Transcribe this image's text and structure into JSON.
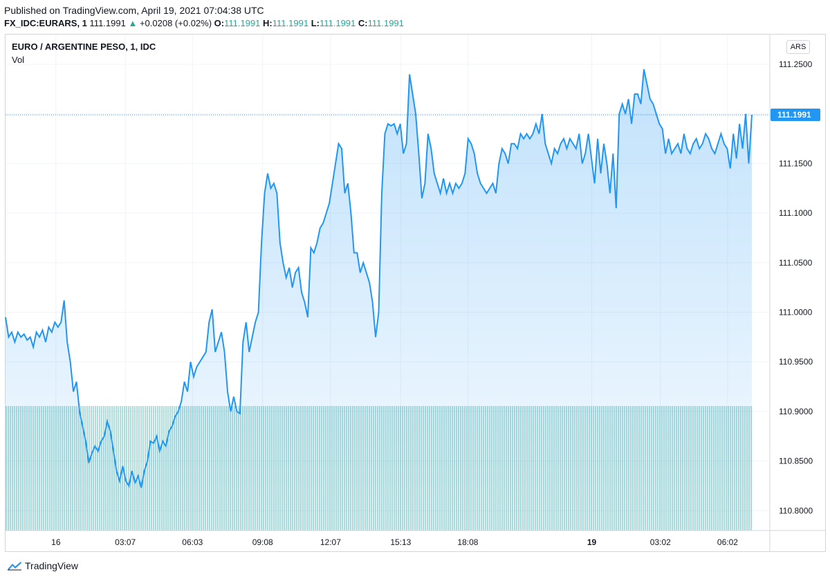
{
  "header": {
    "published": "Published on TradingView.com, April 19, 2021 07:04:38 UTC",
    "symbol": "FX_IDC:EURARS, 1",
    "last": "111.1991",
    "change_arrow": "▲",
    "change": "+0.0208 (+0.02%)",
    "o_label": "O:",
    "o_value": "111.1991",
    "h_label": "H:",
    "h_value": "111.1991",
    "l_label": "L:",
    "l_value": "111.1991",
    "c_label": "C:",
    "c_value": "111.1991"
  },
  "chart_title": "EURO / ARGENTINE PESO, 1, IDC",
  "volume_label": "Vol",
  "currency_badge": "ARS",
  "footer": {
    "brand": "TradingView"
  },
  "colors": {
    "line": "#2196f3",
    "fill": "#2196f3",
    "volume": "#26a69a",
    "last_price": "#2196f3",
    "up": "#26a69a"
  },
  "chart_data": {
    "type": "area",
    "title": "EURO / ARGENTINE PESO, 1, IDC",
    "xlabel": "",
    "ylabel": "",
    "ylim": [
      110.78,
      111.28
    ],
    "y_ticks": [
      "111.2500",
      "111.2000",
      "111.1500",
      "111.1000",
      "111.0500",
      "111.0000",
      "110.9500",
      "110.9000",
      "110.8500",
      "110.8000"
    ],
    "y_tick_values": [
      111.25,
      111.2,
      111.15,
      111.1,
      111.05,
      111.0,
      110.95,
      110.9,
      110.85,
      110.8
    ],
    "x_ticks": [
      {
        "label": "16",
        "bold": false,
        "pos": 0.0675
      },
      {
        "label": "03:07",
        "bold": false,
        "pos": 0.1605
      },
      {
        "label": "06:03",
        "bold": false,
        "pos": 0.2505
      },
      {
        "label": "09:08",
        "bold": false,
        "pos": 0.3445
      },
      {
        "label": "12:07",
        "bold": false,
        "pos": 0.4355
      },
      {
        "label": "15:13",
        "bold": false,
        "pos": 0.5295
      },
      {
        "label": "18:08",
        "bold": false,
        "pos": 0.6195
      },
      {
        "label": "19",
        "bold": true,
        "pos": 0.7855
      },
      {
        "label": "03:02",
        "bold": false,
        "pos": 0.8775
      },
      {
        "label": "06:02",
        "bold": false,
        "pos": 0.9675
      }
    ],
    "last_price": 111.1991,
    "last_price_label": "111.1991",
    "series": [
      {
        "values": [
          110.995,
          110.975,
          110.98,
          110.97,
          110.98,
          110.975,
          110.978,
          110.972,
          110.975,
          110.965,
          110.98,
          110.975,
          110.982,
          110.97,
          110.985,
          110.98,
          110.99,
          110.985,
          110.99,
          111.012,
          110.97,
          110.95,
          110.92,
          110.93,
          110.9,
          110.885,
          110.87,
          110.848,
          110.858,
          110.865,
          110.86,
          110.87,
          110.875,
          110.89,
          110.88,
          110.86,
          110.84,
          110.83,
          110.845,
          110.83,
          110.825,
          110.84,
          110.828,
          110.835,
          110.823,
          110.84,
          110.85,
          110.87,
          110.868,
          110.875,
          110.86,
          110.87,
          110.865,
          110.88,
          110.885,
          110.895,
          110.9,
          110.91,
          110.93,
          110.92,
          110.95,
          110.935,
          110.945,
          110.95,
          110.955,
          110.96,
          110.99,
          111.003,
          110.96,
          110.97,
          110.98,
          110.96,
          110.92,
          110.9,
          110.915,
          110.9,
          110.898,
          110.97,
          110.99,
          110.96,
          110.975,
          110.99,
          111.0,
          111.07,
          111.12,
          111.14,
          111.125,
          111.13,
          111.12,
          111.07,
          111.05,
          111.035,
          111.045,
          111.025,
          111.04,
          111.045,
          111.02,
          111.01,
          110.995,
          111.065,
          111.06,
          111.07,
          111.085,
          111.09,
          111.1,
          111.11,
          111.13,
          111.15,
          111.17,
          111.165,
          111.12,
          111.13,
          111.1,
          111.06,
          111.06,
          111.04,
          111.05,
          111.04,
          111.03,
          111.01,
          110.975,
          111.0,
          111.12,
          111.18,
          111.19,
          111.188,
          111.19,
          111.18,
          111.19,
          111.16,
          111.17,
          111.24,
          111.22,
          111.2,
          111.16,
          111.115,
          111.13,
          111.18,
          111.165,
          111.14,
          111.13,
          111.12,
          111.135,
          111.12,
          111.13,
          111.12,
          111.13,
          111.125,
          111.13,
          111.14,
          111.175,
          111.17,
          111.16,
          111.14,
          111.13,
          111.125,
          111.12,
          111.125,
          111.13,
          111.12,
          111.15,
          111.165,
          111.16,
          111.15,
          111.17,
          111.17,
          111.165,
          111.18,
          111.175,
          111.18,
          111.175,
          111.18,
          111.19,
          111.18,
          111.2,
          111.17,
          111.16,
          111.15,
          111.165,
          111.16,
          111.17,
          111.175,
          111.165,
          111.175,
          111.17,
          111.165,
          111.18,
          111.15,
          111.16,
          111.18,
          111.155,
          111.13,
          111.175,
          111.14,
          111.17,
          111.15,
          111.12,
          111.16,
          111.105,
          111.2,
          111.21,
          111.2,
          111.215,
          111.19,
          111.22,
          111.22,
          111.21,
          111.245,
          111.23,
          111.215,
          111.21,
          111.2,
          111.19,
          111.185,
          111.16,
          111.175,
          111.16,
          111.165,
          111.17,
          111.16,
          111.18,
          111.165,
          111.16,
          111.17,
          111.175,
          111.165,
          111.17,
          111.18,
          111.175,
          111.165,
          111.16,
          111.17,
          111.18,
          111.17,
          111.165,
          111.145,
          111.18,
          111.155,
          111.19,
          111.165,
          111.2,
          111.15,
          111.1991
        ]
      }
    ],
    "volume": {
      "type": "bar",
      "note": "",
      "level": 0.5
    }
  }
}
